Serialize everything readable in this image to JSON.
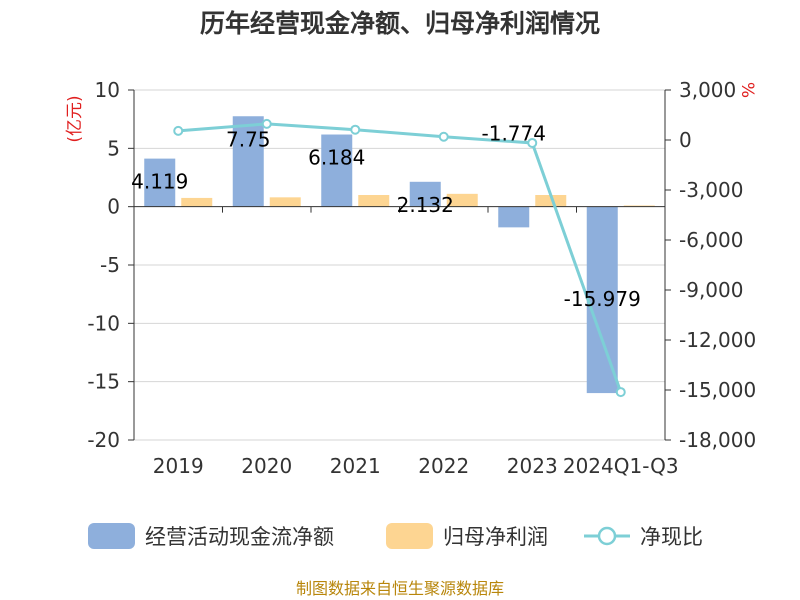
{
  "chart_data": {
    "type": "bar",
    "title": "历年经营现金净额、归母净利润情况",
    "left_unit": "(亿元)",
    "right_unit": "%",
    "categories": [
      "2019",
      "2020",
      "2021",
      "2022",
      "2023",
      "2024Q1-Q3"
    ],
    "ylim_left": [
      -20,
      10
    ],
    "yticks_left": [
      "10",
      "5",
      "0",
      "-5",
      "-10",
      "-15",
      "-20"
    ],
    "ylim_right": [
      -18000,
      3000
    ],
    "yticks_right": [
      "3,000",
      "0",
      "-3,000",
      "-6,000",
      "-9,000",
      "-12,000",
      "-15,000",
      "-18,000"
    ],
    "series": [
      {
        "name": "经营活动现金流净额",
        "type": "bar",
        "axis": "left",
        "color": "#8eafdc",
        "values": [
          4.119,
          7.75,
          6.184,
          2.132,
          -1.774,
          -15.979
        ],
        "labels": [
          "4.119",
          "7.75",
          "6.184",
          "2.132",
          "-1.774",
          "-15.979"
        ]
      },
      {
        "name": "归母净利润",
        "type": "bar",
        "axis": "left",
        "color": "#fdd592",
        "values": [
          0.75,
          0.8,
          1.0,
          1.1,
          1.0,
          0.1
        ]
      },
      {
        "name": "净现比",
        "type": "line",
        "axis": "right",
        "color": "#7dcfd6",
        "values": [
          549,
          966,
          618,
          194,
          -177,
          -15125
        ]
      }
    ],
    "source": "制图数据来自恒生聚源数据库"
  }
}
